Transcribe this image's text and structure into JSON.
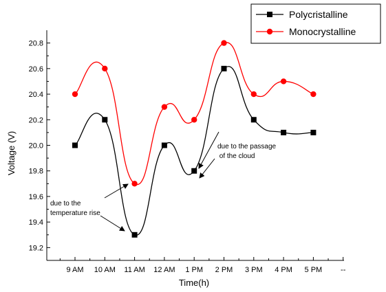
{
  "chart_data": {
    "type": "line",
    "xlabel": "Time(h)",
    "ylabel": "Voltage (V)",
    "categories": [
      "9 AM",
      "10 AM",
      "11 AM",
      "12 AM",
      "1 PM",
      "2 PM",
      "3 PM",
      "4 PM",
      "5 PM"
    ],
    "ylim": [
      19.1,
      20.9
    ],
    "yticks": [
      "19.2",
      "19.4",
      "19.6",
      "19.8",
      "20.0",
      "20.2",
      "20.4",
      "20.6",
      "20.8"
    ],
    "x_extra_tick_label": "--",
    "series": [
      {
        "name": "Polycristalline",
        "color": "#000000",
        "marker": "square",
        "values": [
          20.0,
          20.2,
          19.3,
          20.0,
          19.8,
          20.6,
          20.2,
          20.1,
          20.1
        ]
      },
      {
        "name": "Monocrystalline",
        "color": "#ff0000",
        "marker": "circle",
        "values": [
          20.4,
          20.6,
          19.7,
          20.3,
          20.2,
          20.8,
          20.4,
          20.5,
          20.4
        ]
      }
    ],
    "annotations": [
      {
        "lines": [
          "due to the passage",
          " of the cloud"
        ]
      },
      {
        "lines": [
          "due to the",
          "temperature rise"
        ]
      }
    ],
    "legend_position": "top-right"
  }
}
